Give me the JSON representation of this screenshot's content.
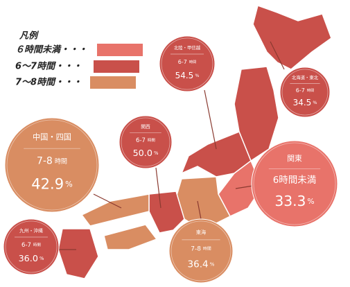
{
  "legend": {
    "title": "凡例",
    "items": [
      {
        "label": "６時間未満・・・",
        "color": "#e8736a"
      },
      {
        "label": "6〜7時間・・・",
        "color": "#c9504a"
      },
      {
        "label": "7〜8時間・・・",
        "color": "#d98d62"
      }
    ]
  },
  "regions": [
    {
      "name": "北陸・甲信越",
      "hours": "6-7",
      "hours_unit": "時間",
      "value": "54.5",
      "unit": "%",
      "color": "#c9504a"
    },
    {
      "name": "北海道・東北",
      "hours": "6-7",
      "hours_unit": "時間",
      "value": "34.5",
      "unit": "%",
      "color": "#c9504a"
    },
    {
      "name": "関西",
      "hours": "6-7",
      "hours_unit": "時間",
      "value": "50.0",
      "unit": "%",
      "color": "#c9504a"
    },
    {
      "name": "中国・四国",
      "hours": "7-8",
      "hours_unit": "時間",
      "value": "42.9",
      "unit": "%",
      "color": "#d98d62"
    },
    {
      "name": "関東",
      "hours": "6時間未満",
      "value": "33.3",
      "unit": "%",
      "color": "#e8736a"
    },
    {
      "name": "東海",
      "hours": "7-8",
      "hours_unit": "時間",
      "value": "36.4",
      "unit": "%",
      "color": "#d98d62"
    },
    {
      "name": "九州・沖縄",
      "hours": "6-7",
      "hours_unit": "時間",
      "value": "36.0",
      "unit": "%",
      "color": "#c9504a"
    }
  ]
}
